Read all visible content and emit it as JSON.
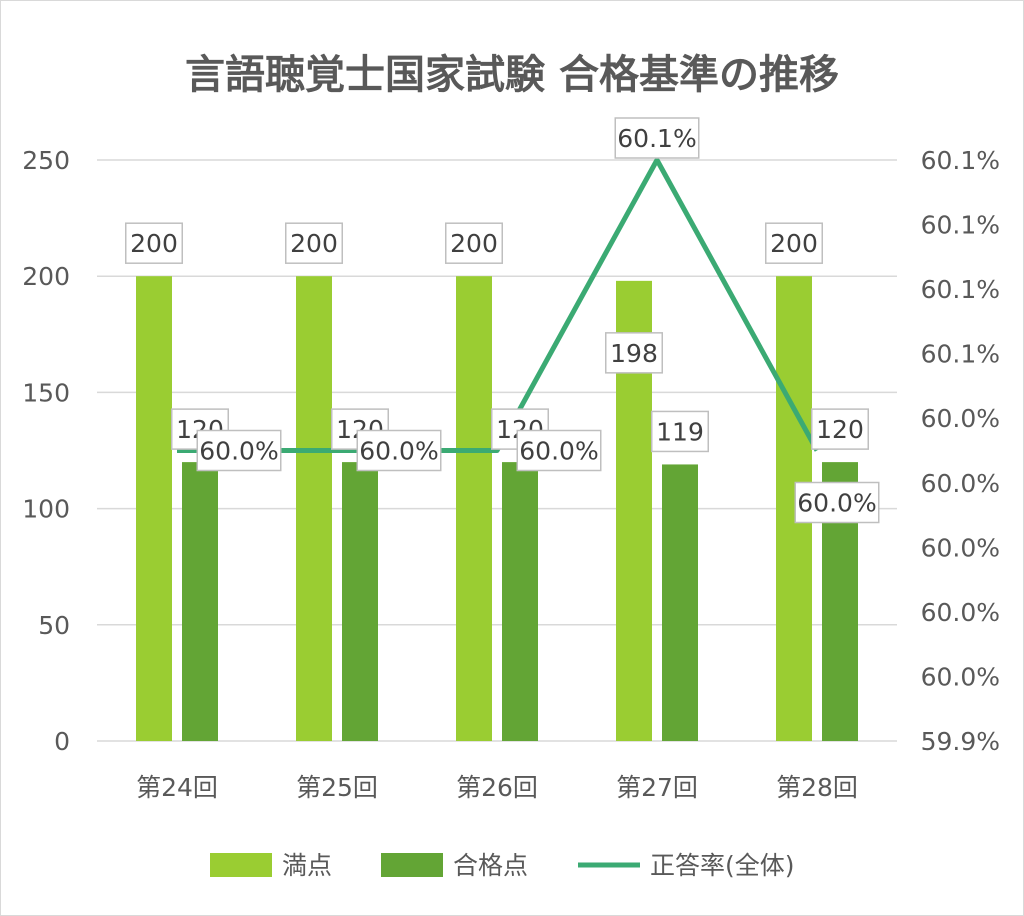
{
  "chart_data": {
    "type": "bar",
    "title": "言語聴覚士国家試験 合格基準の推移",
    "categories": [
      "第24回",
      "第25回",
      "第26回",
      "第27回",
      "第28回"
    ],
    "series": [
      {
        "name": "満点",
        "kind": "bar",
        "axis": "left",
        "color": "#9ACD32",
        "values": [
          200,
          200,
          200,
          198,
          200
        ],
        "labels": [
          "200",
          "200",
          "200",
          "198",
          "200"
        ]
      },
      {
        "name": "合格点",
        "kind": "bar",
        "axis": "left",
        "color": "#63A535",
        "values": [
          120,
          120,
          120,
          119,
          120
        ],
        "labels": [
          "120",
          "120",
          "120",
          "119",
          "120"
        ]
      },
      {
        "name": "正答率(全体)",
        "kind": "line",
        "axis": "right",
        "color": "#3BAA73",
        "values": [
          60.0,
          60.0,
          60.0,
          60.1,
          60.0
        ],
        "labels": [
          "60.0%",
          "60.0%",
          "60.0%",
          "60.1%",
          "60.0%"
        ]
      }
    ],
    "y_left": {
      "range": [
        0,
        250
      ],
      "ticks": [
        "0",
        "50",
        "100",
        "150",
        "200",
        "250"
      ]
    },
    "y_right": {
      "range": [
        59.9,
        60.1
      ],
      "ticks": [
        "59.9%",
        "60.0%",
        "60.0%",
        "60.0%",
        "60.0%",
        "60.0%",
        "60.1%",
        "60.1%",
        "60.1%",
        "60.1%"
      ]
    },
    "grid": true,
    "legend_position": "bottom"
  }
}
